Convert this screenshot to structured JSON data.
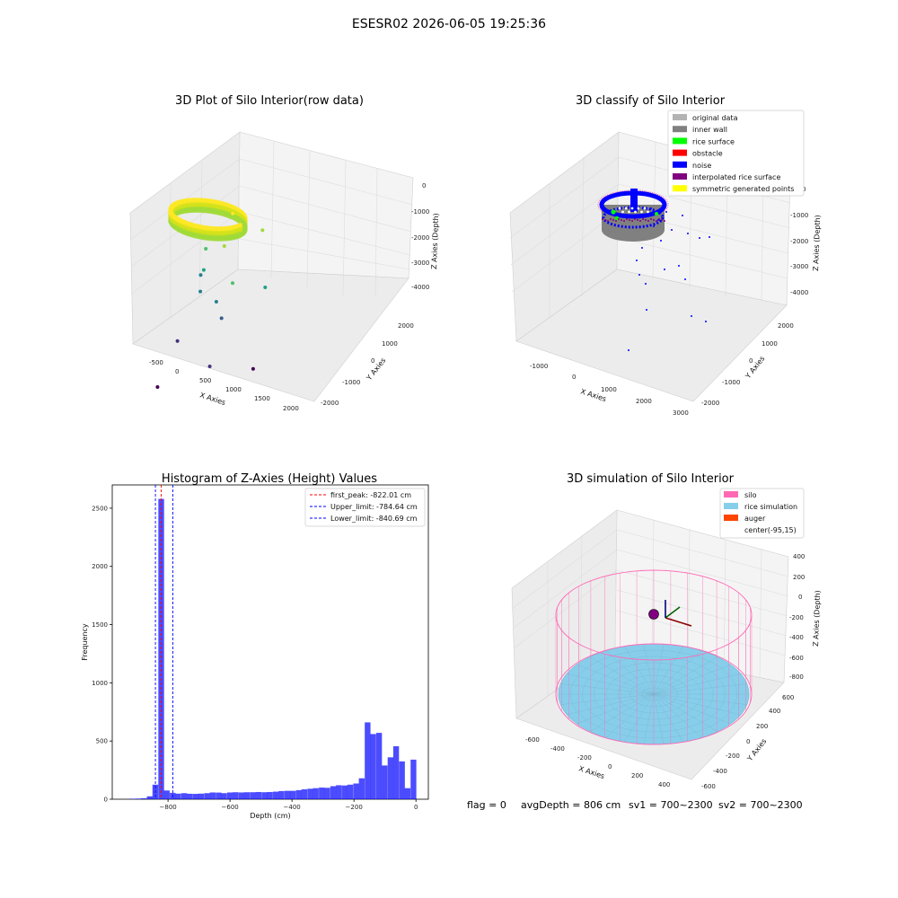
{
  "figure": {
    "suptitle": "ESESR02 2026-06-05 19:25:36",
    "footer": {
      "flag": "flag = 0",
      "avg_depth": "avgDepth = 806 cm",
      "sv1": "sv1 = 700~2300",
      "sv2": "sv2 = 700~2300"
    }
  },
  "chart_data": [
    {
      "type": "scatter",
      "projection": "3d",
      "title": "3D Plot of Silo Interior(row data)",
      "xlabel": "X Axies",
      "ylabel": "Y Axies",
      "zlabel": "Z Axies (Depth)",
      "xticks": [
        "-500",
        "0",
        "500",
        "1000",
        "1500",
        "2000"
      ],
      "yticks": [
        "-2000",
        "-1000",
        "0",
        "1000",
        "2000"
      ],
      "zticks": [
        "0",
        "-1000",
        "-2000",
        "-3000",
        "-4000"
      ],
      "colormap": [
        "#fde725",
        "#a0da39",
        "#4ac16d",
        "#1fa187",
        "#277f8e",
        "#365c8d",
        "#46327e",
        "#440154"
      ],
      "ring": {
        "depth": -822,
        "radius": 570,
        "points_shown": "dense"
      },
      "scattered_points": [
        {
          "x": 420,
          "y": 560,
          "z": -1000
        },
        {
          "x": 700,
          "y": 350,
          "z": -1050
        },
        {
          "x": 900,
          "y": 600,
          "z": -1300
        },
        {
          "x": 600,
          "y": 120,
          "z": -1600
        },
        {
          "x": 1200,
          "y": -500,
          "z": -1950
        },
        {
          "x": 1500,
          "y": -150,
          "z": -2200
        },
        {
          "x": 150,
          "y": 300,
          "z": -2100
        },
        {
          "x": 300,
          "y": 50,
          "z": -2500
        },
        {
          "x": 500,
          "y": -300,
          "z": -2800
        },
        {
          "x": 100,
          "y": 250,
          "z": -2950
        },
        {
          "x": 700,
          "y": -200,
          "z": -3100
        },
        {
          "x": 900,
          "y": -350,
          "z": -3400
        },
        {
          "x": 550,
          "y": -900,
          "z": -3900
        },
        {
          "x": 1400,
          "y": -1300,
          "z": -3900
        },
        {
          "x": 1700,
          "y": -700,
          "z": -4300
        },
        {
          "x": 800,
          "y": -1700,
          "z": -4600
        }
      ]
    },
    {
      "type": "scatter",
      "projection": "3d",
      "title": "3D classify of Silo Interior",
      "xlabel": "X Axies",
      "ylabel": "Y Axies",
      "zlabel": "Z Axies (Depth)",
      "xticks": [
        "-1000",
        "0",
        "1000",
        "2000",
        "3000"
      ],
      "yticks": [
        "-2000",
        "-1000",
        "0",
        "1000",
        "2000"
      ],
      "zticks": [
        "0",
        "-1000",
        "-2000",
        "-3000",
        "-4000"
      ],
      "legend_position": "top-right",
      "legend": [
        {
          "label": "original data",
          "color": "#b3b3b3"
        },
        {
          "label": "inner wall",
          "color": "#808080"
        },
        {
          "label": "rice surface",
          "color": "#00ff00"
        },
        {
          "label": "obstacle",
          "color": "#ff0000"
        },
        {
          "label": "noise",
          "color": "#0000ff"
        },
        {
          "label": "interpolated rice surface",
          "color": "#800080"
        },
        {
          "label": "symmetric generated points",
          "color": "#ffff00"
        }
      ]
    },
    {
      "type": "bar",
      "title": "Histogram of Z-Axies (Height) Values",
      "xlabel": "Depth (cm)",
      "ylabel": "Frequency",
      "xlim": [
        -980,
        40
      ],
      "ylim": [
        0,
        2700
      ],
      "xticks": [
        -800,
        -600,
        -400,
        -200,
        0
      ],
      "yticks": [
        0,
        500,
        1000,
        1500,
        2000,
        2500
      ],
      "bar_color": "#0000ff",
      "bar_opacity": 0.7,
      "bin_width": 18.5,
      "bins": [
        [
          -915,
          4
        ],
        [
          -896,
          5
        ],
        [
          -878,
          8
        ],
        [
          -859,
          25
        ],
        [
          -841,
          125
        ],
        [
          -822,
          2580
        ],
        [
          -804,
          75
        ],
        [
          -785,
          55
        ],
        [
          -767,
          48
        ],
        [
          -748,
          52
        ],
        [
          -730,
          47
        ],
        [
          -711,
          46
        ],
        [
          -693,
          48
        ],
        [
          -674,
          52
        ],
        [
          -656,
          58
        ],
        [
          -637,
          57
        ],
        [
          -619,
          52
        ],
        [
          -600,
          58
        ],
        [
          -582,
          60
        ],
        [
          -563,
          58
        ],
        [
          -545,
          60
        ],
        [
          -526,
          60
        ],
        [
          -508,
          62
        ],
        [
          -489,
          60
        ],
        [
          -471,
          62
        ],
        [
          -452,
          65
        ],
        [
          -434,
          70
        ],
        [
          -415,
          72
        ],
        [
          -397,
          72
        ],
        [
          -378,
          78
        ],
        [
          -360,
          85
        ],
        [
          -341,
          90
        ],
        [
          -323,
          95
        ],
        [
          -304,
          100
        ],
        [
          -286,
          98
        ],
        [
          -267,
          112
        ],
        [
          -249,
          120
        ],
        [
          -230,
          118
        ],
        [
          -212,
          125
        ],
        [
          -193,
          135
        ],
        [
          -175,
          180
        ],
        [
          -156,
          660
        ],
        [
          -138,
          560
        ],
        [
          -119,
          570
        ],
        [
          -101,
          290
        ],
        [
          -82,
          360
        ],
        [
          -64,
          455
        ],
        [
          -45,
          325
        ],
        [
          -27,
          95
        ],
        [
          -8,
          340
        ]
      ],
      "vlines": [
        {
          "label": "first_peak: -822.01 cm",
          "x": -822.01,
          "color": "#ff0000"
        },
        {
          "label": "Upper_limit: -784.64 cm",
          "x": -784.64,
          "color": "#0000ff"
        },
        {
          "label": "Lower_limit: -840.69 cm",
          "x": -840.69,
          "color": "#0000ff"
        }
      ],
      "legend_position": "top-right"
    },
    {
      "type": "scatter",
      "projection": "3d",
      "title": "3D simulation of Silo Interior",
      "xlabel": "X Axies",
      "ylabel": "Y Axies",
      "zlabel": "Z Axies (Depth)",
      "xticks": [
        "-600",
        "-400",
        "-200",
        "0",
        "200",
        "400"
      ],
      "yticks": [
        "-600",
        "-400",
        "-200",
        "0",
        "200",
        "400",
        "600"
      ],
      "zticks": [
        "400",
        "200",
        "0",
        "-200",
        "-400",
        "-600",
        "-800"
      ],
      "legend_position": "top-right",
      "legend": [
        {
          "label": "silo",
          "color": "#ff69b4"
        },
        {
          "label": "rice simulation",
          "color": "#87ceeb"
        },
        {
          "label": "auger",
          "color": "#ff4500"
        },
        {
          "label": "center(-95,15)",
          "color": ""
        }
      ],
      "center": {
        "x": -95,
        "y": 15
      }
    }
  ]
}
